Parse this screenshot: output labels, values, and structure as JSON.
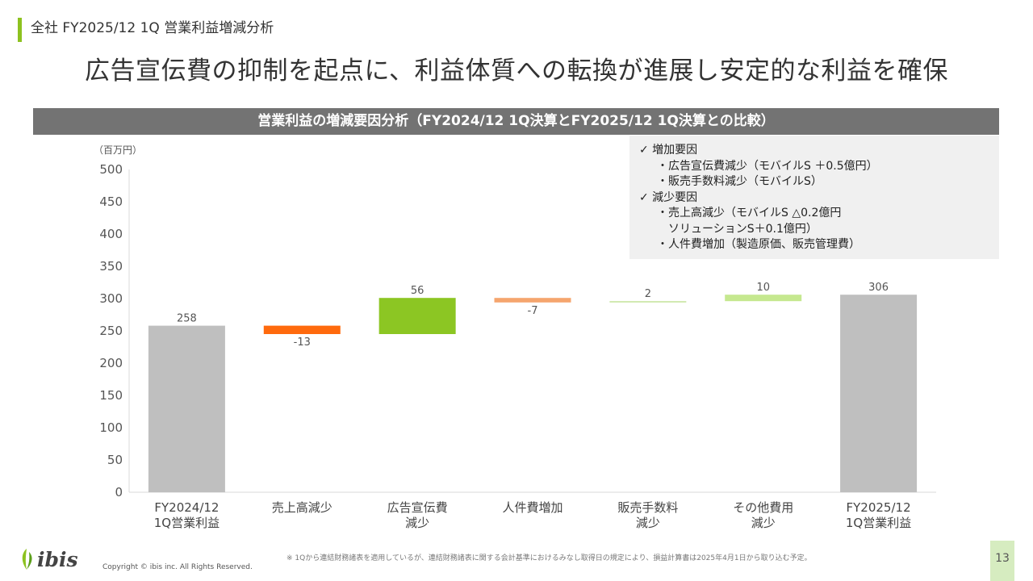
{
  "header": {
    "section_label": "全社 FY2025/12 1Q 営業利益増減分析",
    "headline": "広告宣伝費の抑制を起点に、利益体質への転換が進展し安定的な利益を確保"
  },
  "chart_banner": "営業利益の増減要因分析（FY2024/12 1Q決算とFY2025/12 1Q決算との比較）",
  "notes": {
    "increase_title": "✓ 増加要因",
    "increase_items": [
      "・広告宣伝費減少（モバイルS ＋0.5億円）",
      "・販売手数料減少（モバイルS）"
    ],
    "decrease_title": "✓ 減少要因",
    "decrease_items": [
      "・売上高減少（モバイルS △0.2億円",
      "ソリューションS＋0.1億円）",
      "・人件費増加（製造原価、販売管理費）"
    ]
  },
  "chart_data": {
    "type": "bar",
    "subtype": "waterfall",
    "unit_label": "（百万円）",
    "ylim": [
      0,
      500
    ],
    "yticks": [
      0,
      50,
      100,
      150,
      200,
      250,
      300,
      350,
      400,
      450,
      500
    ],
    "grid": false,
    "categories": [
      [
        "FY2024/12",
        "1Q営業利益"
      ],
      [
        "売上高減少"
      ],
      [
        "広告宣伝費",
        "減少"
      ],
      [
        "人件費増加"
      ],
      [
        "販売手数料",
        "減少"
      ],
      [
        "その他費用",
        "減少"
      ],
      [
        "FY2025/12",
        "1Q営業利益"
      ]
    ],
    "values": [
      258,
      -13,
      56,
      -7,
      2,
      10,
      306
    ],
    "value_labels": [
      "258",
      "-13",
      "56",
      "-7",
      "2",
      "10",
      "306"
    ],
    "kinds": [
      "total",
      "delta",
      "delta",
      "delta",
      "delta",
      "delta",
      "total"
    ],
    "colors": [
      "#bfbfbf",
      "#ff6a0d",
      "#8cc623",
      "#f5a56e",
      "#c7e59f",
      "#c5e88f",
      "#bfbfbf"
    ]
  },
  "footer": {
    "footnote": "※ 1Qから連結財務諸表を適用しているが、連結財務諸表に関する会計基準におけるみなし取得日の規定により、損益計算書は2025年4月1日から取り込む予定。",
    "copyright": "Copyright © ibis inc. All Rights Reserved.",
    "logo_text": "ibis",
    "page_number": "13"
  }
}
